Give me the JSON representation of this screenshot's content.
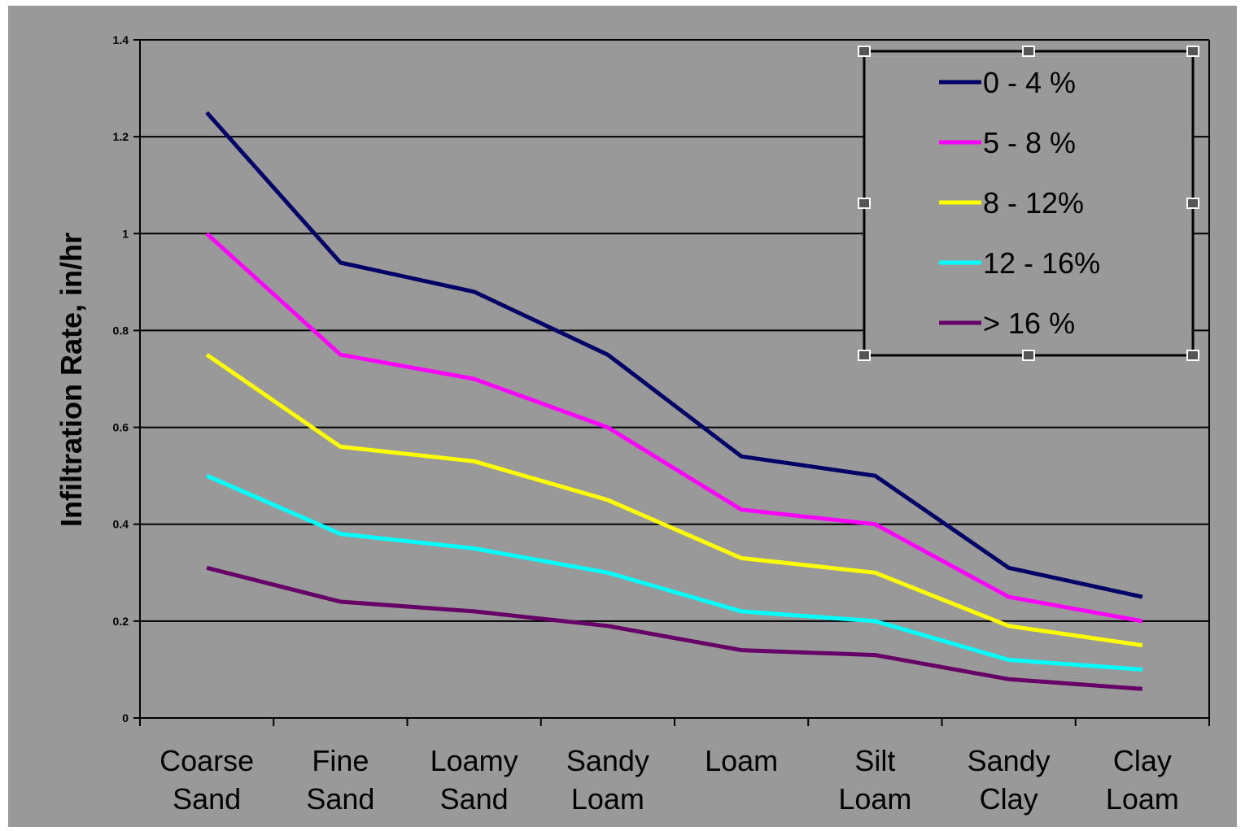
{
  "chart_data": {
    "type": "line",
    "title": "",
    "xlabel": "",
    "ylabel": "Infiltration Rate, in/hr",
    "ylim": [
      0,
      1.4
    ],
    "yticks": [
      0,
      0.2,
      0.4,
      0.6,
      0.8,
      1,
      1.2,
      1.4
    ],
    "ytick_labels": [
      "0",
      "0.2",
      "0.4",
      "0.6",
      "0.8",
      "1",
      "1.2",
      "1.4"
    ],
    "categories": [
      [
        "Coarse",
        "Sand"
      ],
      [
        "Fine",
        "Sand"
      ],
      [
        "Loamy",
        "Sand"
      ],
      [
        "Sandy",
        "Loam"
      ],
      [
        "Loam"
      ],
      [
        "Silt",
        "Loam"
      ],
      [
        "Sandy",
        "Clay"
      ],
      [
        "Clay",
        "Loam"
      ]
    ],
    "grid": true,
    "legend_position": "top-right",
    "background": "#999999",
    "series": [
      {
        "name": "0 - 4 %",
        "color": "#000066",
        "values": [
          1.25,
          0.94,
          0.88,
          0.75,
          0.54,
          0.5,
          0.31,
          0.25
        ]
      },
      {
        "name": "5 - 8 %",
        "color": "#ff00ff",
        "values": [
          1.0,
          0.75,
          0.7,
          0.6,
          0.43,
          0.4,
          0.25,
          0.2
        ]
      },
      {
        "name": "8 - 12%",
        "color": "#ffff00",
        "values": [
          0.75,
          0.56,
          0.53,
          0.45,
          0.33,
          0.3,
          0.19,
          0.15
        ]
      },
      {
        "name": "12 - 16%",
        "color": "#00ffff",
        "values": [
          0.5,
          0.38,
          0.35,
          0.3,
          0.22,
          0.2,
          0.12,
          0.1
        ]
      },
      {
        "name": "> 16 %",
        "color": "#660066",
        "values": [
          0.31,
          0.24,
          0.22,
          0.19,
          0.14,
          0.13,
          0.08,
          0.06
        ]
      }
    ]
  }
}
